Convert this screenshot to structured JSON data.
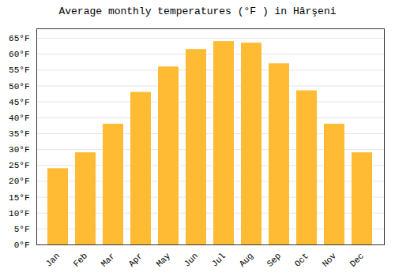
{
  "chart_data": {
    "type": "bar",
    "title": "Average monthly temperatures (°F ) in Hârşeni",
    "categories": [
      "Jan",
      "Feb",
      "Mar",
      "Apr",
      "May",
      "Jun",
      "Jul",
      "Aug",
      "Sep",
      "Oct",
      "Nov",
      "Dec"
    ],
    "values": [
      24.0,
      29.0,
      38.0,
      48.0,
      56.0,
      61.5,
      64.0,
      63.5,
      57.0,
      48.5,
      38.0,
      29.0
    ],
    "color": "#FFBB33",
    "ylim": [
      0,
      68
    ],
    "yticks": [
      {
        "value": 0,
        "label": "0°F"
      },
      {
        "value": 5,
        "label": "5°F"
      },
      {
        "value": 10,
        "label": "10°F"
      },
      {
        "value": 15,
        "label": "15°F"
      },
      {
        "value": 20,
        "label": "20°F"
      },
      {
        "value": 25,
        "label": "25°F"
      },
      {
        "value": 30,
        "label": "30°F"
      },
      {
        "value": 35,
        "label": "35°F"
      },
      {
        "value": 40,
        "label": "40°F"
      },
      {
        "value": 45,
        "label": "45°F"
      },
      {
        "value": 50,
        "label": "50°F"
      },
      {
        "value": 55,
        "label": "55°F"
      },
      {
        "value": 60,
        "label": "60°F"
      },
      {
        "value": 65,
        "label": "65°F"
      }
    ],
    "grid": true
  }
}
